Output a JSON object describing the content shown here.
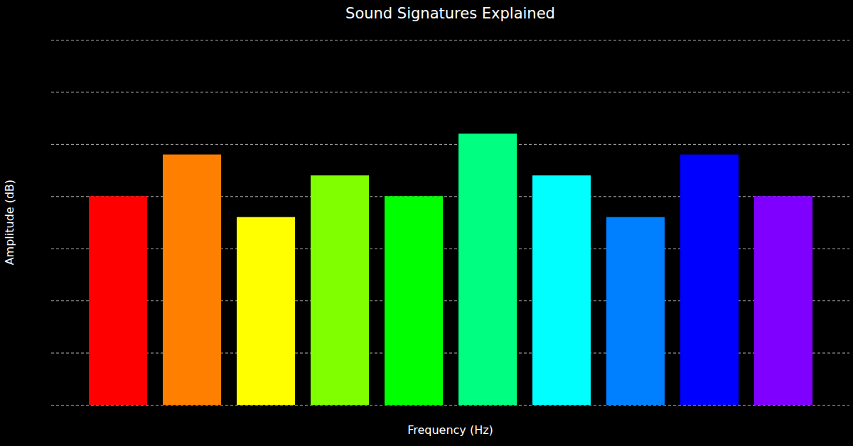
{
  "chart_data": {
    "type": "bar",
    "title": "Sound Signatures Explained",
    "xlabel": "Frequency (Hz)",
    "ylabel": "Amplitude (dB)",
    "categories": [
      null,
      null,
      null,
      null,
      null,
      null,
      null,
      null,
      null,
      null
    ],
    "values": [
      4.0,
      4.8,
      3.6,
      4.4,
      4.0,
      5.2,
      4.4,
      3.6,
      4.8,
      4.0
    ],
    "colors": [
      "#ff0000",
      "#ff8000",
      "#ffff00",
      "#80ff00",
      "#00ff00",
      "#00ff80",
      "#00ffff",
      "#0080ff",
      "#0000ff",
      "#8000ff"
    ],
    "ylim": [
      0,
      7
    ],
    "yticks": [
      0,
      1,
      2,
      3,
      4,
      5,
      6,
      7
    ],
    "grid": true,
    "tick_labels": false
  }
}
